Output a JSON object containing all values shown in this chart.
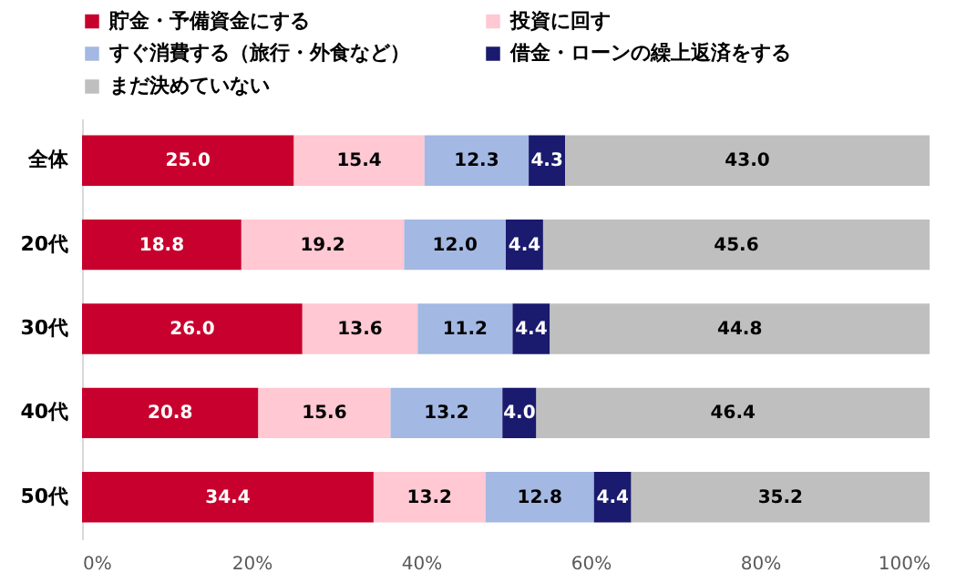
{
  "chart_data": {
    "type": "bar",
    "orientation": "horizontal",
    "stacked": true,
    "legend": "top",
    "grid": false,
    "categories": [
      "全体",
      "20代",
      "30代",
      "40代",
      "50代"
    ],
    "series": [
      {
        "name": "貯金・予備資金にする",
        "color": "#c8002d",
        "values": [
          25.0,
          18.8,
          26.0,
          20.8,
          34.4
        ],
        "value_labels": [
          "25.0",
          "18.8",
          "26.0",
          "20.8",
          "34.4"
        ]
      },
      {
        "name": "投資に回す",
        "color": "#ffc8d2",
        "values": [
          15.4,
          19.2,
          13.6,
          15.6,
          13.2
        ],
        "value_labels": [
          "15.4",
          "19.2",
          "13.6",
          "15.6",
          "13.2"
        ]
      },
      {
        "name": "すぐ消費する（旅行・外食など）",
        "color": "#a3b8e3",
        "values": [
          12.3,
          12.0,
          11.2,
          13.2,
          12.8
        ],
        "value_labels": [
          "12.3",
          "12.0",
          "11.2",
          "13.2",
          "12.8"
        ]
      },
      {
        "name": "借金・ローンの繰上返済をする",
        "color": "#1a1a6e",
        "values": [
          4.3,
          4.4,
          4.4,
          4.0,
          4.4
        ],
        "value_labels": [
          "4.3",
          "4.4",
          "4.4",
          "4.0",
          "4.4"
        ]
      },
      {
        "name": "まだ決めていない",
        "color": "#bfbfbf",
        "values": [
          43.0,
          45.6,
          44.8,
          46.4,
          35.2
        ],
        "value_labels": [
          "43.0",
          "45.6",
          "44.8",
          "46.4",
          "35.2"
        ]
      }
    ],
    "xlim": [
      0,
      100
    ],
    "xticks": [
      {
        "value": 0,
        "label": "0%"
      },
      {
        "value": 20,
        "label": "20%"
      },
      {
        "value": 40,
        "label": "40%"
      },
      {
        "value": 60,
        "label": "60%"
      },
      {
        "value": 80,
        "label": "80%"
      },
      {
        "value": 100,
        "label": "100%"
      }
    ]
  }
}
